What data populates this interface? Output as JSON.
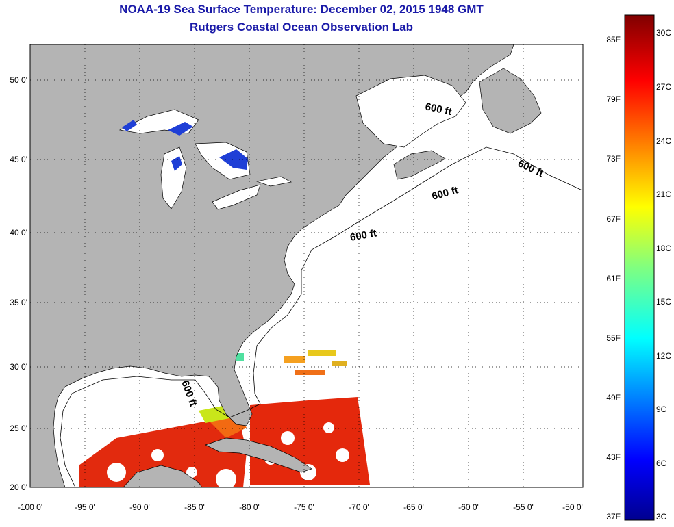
{
  "title": "NOAA-19 Sea Surface Temperature:  December 02, 2015 1948 GMT",
  "subtitle": "Rutgers Coastal Ocean Observation Lab",
  "x_ticks": [
    "-100 0'",
    "-95 0'",
    "-90 0'",
    "-85 0'",
    "-80 0'",
    "-75 0'",
    "-70 0'",
    "-65 0'",
    "-60 0'",
    "-55 0'",
    "-50 0'"
  ],
  "y_ticks": [
    "50 0'",
    "45 0'",
    "40 0'",
    "35 0'",
    "30 0'",
    "25 0'",
    "20 0'"
  ],
  "contour_labels": [
    "600 ft",
    "600 ft",
    "600 ft",
    "600 ft",
    "600 ft"
  ],
  "colorbar": {
    "f_labels": [
      "85F",
      "79F",
      "73F",
      "67F",
      "61F",
      "55F",
      "49F",
      "43F",
      "37F"
    ],
    "c_labels": [
      "30C",
      "27C",
      "24C",
      "21C",
      "18C",
      "15C",
      "12C",
      "9C",
      "6C",
      "3C"
    ]
  },
  "colors": {
    "title": "#1a1aa8",
    "land": "#b4b4b4",
    "ocean": "#ffffff",
    "lake_cold": "#1f3fd6",
    "sst_warm": "#e0200a"
  }
}
